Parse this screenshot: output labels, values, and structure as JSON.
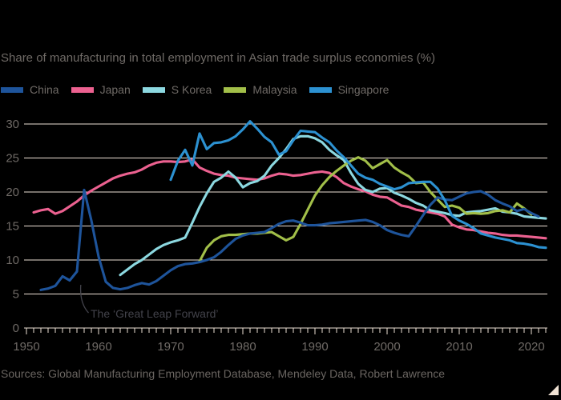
{
  "title": "Share of manufacturing in total employment in Asian trade surplus economies (%)",
  "source": "Sources: Global Manufacturing Employment Database, Mendeley Data, Robert Lawrence",
  "annotation": {
    "text": "The ‘Great Leap Forward’",
    "target_series": "China",
    "target_year": 1958
  },
  "colors": {
    "background": "#000000",
    "gridline": "#ece0d4",
    "axis_text": "#6f6a66",
    "annotation_text": "#43434b"
  },
  "chart_data": {
    "type": "line",
    "title": "Share of manufacturing in total employment in Asian trade surplus economies (%)",
    "xlabel": "",
    "ylabel": "",
    "x_range": [
      1950,
      2022.5
    ],
    "ylim": [
      0,
      30
    ],
    "x_ticks": [
      1950,
      1960,
      1970,
      1980,
      1990,
      2000,
      2010,
      2020
    ],
    "y_ticks": [
      0,
      5,
      10,
      15,
      20,
      25,
      30
    ],
    "grid": "horizontal",
    "legend_position": "top-left",
    "series": [
      {
        "id": "japan",
        "name": "Japan",
        "color": "#ec6190",
        "points": [
          [
            1951,
            17.0
          ],
          [
            1952,
            17.3
          ],
          [
            1953,
            17.5
          ],
          [
            1954,
            16.8
          ],
          [
            1955,
            17.2
          ],
          [
            1956,
            17.9
          ],
          [
            1957,
            18.6
          ],
          [
            1958,
            19.5
          ],
          [
            1959,
            20.2
          ],
          [
            1960,
            20.8
          ],
          [
            1961,
            21.4
          ],
          [
            1962,
            22.0
          ],
          [
            1963,
            22.4
          ],
          [
            1964,
            22.7
          ],
          [
            1965,
            22.9
          ],
          [
            1966,
            23.3
          ],
          [
            1967,
            23.9
          ],
          [
            1968,
            24.3
          ],
          [
            1969,
            24.5
          ],
          [
            1970,
            24.5
          ],
          [
            1971,
            24.4
          ],
          [
            1972,
            24.5
          ],
          [
            1973,
            24.8
          ],
          [
            1974,
            23.6
          ],
          [
            1975,
            23.1
          ],
          [
            1976,
            22.7
          ],
          [
            1977,
            22.5
          ],
          [
            1978,
            22.4
          ],
          [
            1979,
            22.1
          ],
          [
            1980,
            22.0
          ],
          [
            1981,
            21.9
          ],
          [
            1982,
            21.8
          ],
          [
            1983,
            22.0
          ],
          [
            1984,
            22.4
          ],
          [
            1985,
            22.7
          ],
          [
            1986,
            22.6
          ],
          [
            1987,
            22.4
          ],
          [
            1988,
            22.5
          ],
          [
            1989,
            22.7
          ],
          [
            1990,
            22.9
          ],
          [
            1991,
            23.0
          ],
          [
            1992,
            22.8
          ],
          [
            1993,
            22.2
          ],
          [
            1994,
            21.3
          ],
          [
            1995,
            20.8
          ],
          [
            1996,
            20.4
          ],
          [
            1997,
            20.1
          ],
          [
            1998,
            19.6
          ],
          [
            1999,
            19.3
          ],
          [
            2000,
            19.2
          ],
          [
            2001,
            18.6
          ],
          [
            2002,
            18.0
          ],
          [
            2003,
            17.8
          ],
          [
            2004,
            17.4
          ],
          [
            2005,
            17.2
          ],
          [
            2006,
            17.0
          ],
          [
            2007,
            16.8
          ],
          [
            2008,
            16.4
          ],
          [
            2009,
            15.2
          ],
          [
            2010,
            14.8
          ],
          [
            2011,
            14.5
          ],
          [
            2012,
            14.4
          ],
          [
            2013,
            14.2
          ],
          [
            2014,
            14.0
          ],
          [
            2015,
            13.9
          ],
          [
            2016,
            13.7
          ],
          [
            2017,
            13.6
          ],
          [
            2018,
            13.6
          ],
          [
            2019,
            13.5
          ],
          [
            2020,
            13.4
          ],
          [
            2021,
            13.3
          ],
          [
            2022,
            13.2
          ]
        ]
      },
      {
        "id": "skorea",
        "name": "S Korea",
        "color": "#8cd8e0",
        "points": [
          [
            1963,
            7.8
          ],
          [
            1964,
            8.6
          ],
          [
            1965,
            9.4
          ],
          [
            1966,
            10.0
          ],
          [
            1967,
            10.8
          ],
          [
            1968,
            11.6
          ],
          [
            1969,
            12.2
          ],
          [
            1970,
            12.6
          ],
          [
            1971,
            12.9
          ],
          [
            1972,
            13.3
          ],
          [
            1973,
            15.5
          ],
          [
            1974,
            17.8
          ],
          [
            1975,
            19.8
          ],
          [
            1976,
            21.5
          ],
          [
            1977,
            22.1
          ],
          [
            1978,
            23.0
          ],
          [
            1979,
            22.1
          ],
          [
            1980,
            20.7
          ],
          [
            1981,
            21.3
          ],
          [
            1982,
            21.6
          ],
          [
            1983,
            22.4
          ],
          [
            1984,
            23.9
          ],
          [
            1985,
            25.0
          ],
          [
            1986,
            26.3
          ],
          [
            1987,
            27.8
          ],
          [
            1988,
            28.2
          ],
          [
            1989,
            28.2
          ],
          [
            1990,
            27.9
          ],
          [
            1991,
            27.3
          ],
          [
            1992,
            26.2
          ],
          [
            1993,
            25.4
          ],
          [
            1994,
            24.7
          ],
          [
            1995,
            22.8
          ],
          [
            1996,
            21.2
          ],
          [
            1997,
            20.3
          ],
          [
            1998,
            20.0
          ],
          [
            1999,
            20.5
          ],
          [
            2000,
            20.6
          ],
          [
            2001,
            19.9
          ],
          [
            2002,
            19.5
          ],
          [
            2003,
            19.0
          ],
          [
            2004,
            18.4
          ],
          [
            2005,
            18.0
          ],
          [
            2006,
            17.3
          ],
          [
            2007,
            17.1
          ],
          [
            2008,
            16.9
          ],
          [
            2009,
            16.6
          ],
          [
            2010,
            16.5
          ],
          [
            2011,
            17.0
          ],
          [
            2012,
            17.1
          ],
          [
            2013,
            17.2
          ],
          [
            2014,
            17.4
          ],
          [
            2015,
            17.6
          ],
          [
            2016,
            17.1
          ],
          [
            2017,
            17.0
          ],
          [
            2018,
            16.8
          ],
          [
            2019,
            16.4
          ],
          [
            2020,
            16.3
          ],
          [
            2021,
            16.2
          ],
          [
            2022,
            16.1
          ]
        ]
      },
      {
        "id": "malaysia",
        "name": "Malaysia",
        "color": "#a2bf49",
        "points": [
          [
            1974,
            9.8
          ],
          [
            1975,
            11.8
          ],
          [
            1976,
            12.9
          ],
          [
            1977,
            13.5
          ],
          [
            1978,
            13.7
          ],
          [
            1979,
            13.7
          ],
          [
            1980,
            13.8
          ],
          [
            1981,
            13.9
          ],
          [
            1982,
            13.9
          ],
          [
            1983,
            14.0
          ],
          [
            1984,
            14.1
          ],
          [
            1985,
            13.5
          ],
          [
            1986,
            12.9
          ],
          [
            1987,
            13.4
          ],
          [
            1988,
            15.3
          ],
          [
            1989,
            17.4
          ],
          [
            1990,
            19.5
          ],
          [
            1991,
            21.0
          ],
          [
            1992,
            22.2
          ],
          [
            1993,
            23.1
          ],
          [
            1994,
            23.9
          ],
          [
            1995,
            24.6
          ],
          [
            1996,
            25.1
          ],
          [
            1997,
            24.6
          ],
          [
            1998,
            23.5
          ],
          [
            1999,
            24.1
          ],
          [
            2000,
            24.7
          ],
          [
            2001,
            23.6
          ],
          [
            2002,
            22.9
          ],
          [
            2003,
            22.3
          ],
          [
            2004,
            21.3
          ],
          [
            2005,
            21.4
          ],
          [
            2006,
            20.0
          ],
          [
            2007,
            18.9
          ],
          [
            2008,
            17.8
          ],
          [
            2009,
            18.0
          ],
          [
            2010,
            17.7
          ],
          [
            2011,
            16.8
          ],
          [
            2012,
            16.9
          ],
          [
            2013,
            16.8
          ],
          [
            2014,
            16.9
          ],
          [
            2015,
            17.2
          ],
          [
            2016,
            17.3
          ],
          [
            2017,
            17.0
          ],
          [
            2018,
            18.3
          ],
          [
            2019,
            17.6
          ],
          [
            2020,
            16.7
          ]
        ]
      },
      {
        "id": "china",
        "name": "China",
        "color": "#1e549b",
        "points": [
          [
            1952,
            5.6
          ],
          [
            1953,
            5.8
          ],
          [
            1954,
            6.2
          ],
          [
            1955,
            7.6
          ],
          [
            1956,
            7.0
          ],
          [
            1957,
            8.3
          ],
          [
            1958,
            20.3
          ],
          [
            1959,
            15.8
          ],
          [
            1960,
            10.5
          ],
          [
            1961,
            6.8
          ],
          [
            1962,
            5.9
          ],
          [
            1963,
            5.7
          ],
          [
            1964,
            5.9
          ],
          [
            1965,
            6.3
          ],
          [
            1966,
            6.6
          ],
          [
            1967,
            6.4
          ],
          [
            1968,
            6.9
          ],
          [
            1969,
            7.7
          ],
          [
            1970,
            8.5
          ],
          [
            1971,
            9.1
          ],
          [
            1972,
            9.4
          ],
          [
            1973,
            9.5
          ],
          [
            1974,
            9.7
          ],
          [
            1975,
            10.0
          ],
          [
            1976,
            10.4
          ],
          [
            1977,
            11.2
          ],
          [
            1978,
            12.2
          ],
          [
            1979,
            13.1
          ],
          [
            1980,
            13.6
          ],
          [
            1981,
            13.9
          ],
          [
            1982,
            14.0
          ],
          [
            1983,
            14.1
          ],
          [
            1984,
            14.7
          ],
          [
            1985,
            15.3
          ],
          [
            1986,
            15.7
          ],
          [
            1987,
            15.8
          ],
          [
            1988,
            15.5
          ],
          [
            1989,
            15.1
          ],
          [
            1990,
            15.1
          ],
          [
            1991,
            15.2
          ],
          [
            1992,
            15.4
          ],
          [
            1993,
            15.5
          ],
          [
            1994,
            15.6
          ],
          [
            1995,
            15.7
          ],
          [
            1996,
            15.8
          ],
          [
            1997,
            15.9
          ],
          [
            1998,
            15.6
          ],
          [
            1999,
            15.1
          ],
          [
            2000,
            14.4
          ],
          [
            2001,
            14.0
          ],
          [
            2002,
            13.7
          ],
          [
            2003,
            13.5
          ],
          [
            2004,
            15.0
          ],
          [
            2005,
            16.6
          ],
          [
            2006,
            18.1
          ],
          [
            2007,
            19.2
          ],
          [
            2008,
            18.9
          ],
          [
            2009,
            18.8
          ],
          [
            2010,
            19.3
          ],
          [
            2011,
            19.8
          ],
          [
            2012,
            20.0
          ],
          [
            2013,
            20.1
          ],
          [
            2014,
            19.6
          ],
          [
            2015,
            18.8
          ],
          [
            2016,
            18.3
          ],
          [
            2017,
            17.9
          ],
          [
            2018,
            17.2
          ],
          [
            2019,
            17.5
          ],
          [
            2020,
            16.9
          ],
          [
            2021,
            16.4
          ]
        ]
      },
      {
        "id": "singapore",
        "name": "Singapore",
        "color": "#2c91d1",
        "points": [
          [
            1970,
            21.8
          ],
          [
            1971,
            24.6
          ],
          [
            1972,
            26.2
          ],
          [
            1973,
            23.9
          ],
          [
            1974,
            28.6
          ],
          [
            1975,
            26.3
          ],
          [
            1976,
            27.2
          ],
          [
            1977,
            27.3
          ],
          [
            1978,
            27.6
          ],
          [
            1979,
            28.2
          ],
          [
            1980,
            29.2
          ],
          [
            1981,
            30.4
          ],
          [
            1982,
            29.3
          ],
          [
            1983,
            28.1
          ],
          [
            1984,
            27.3
          ],
          [
            1985,
            25.5
          ],
          [
            1986,
            26.0
          ],
          [
            1987,
            27.6
          ],
          [
            1988,
            29.0
          ],
          [
            1989,
            28.9
          ],
          [
            1990,
            28.8
          ],
          [
            1991,
            28.0
          ],
          [
            1992,
            27.3
          ],
          [
            1993,
            26.1
          ],
          [
            1994,
            25.1
          ],
          [
            1995,
            23.9
          ],
          [
            1996,
            22.7
          ],
          [
            1997,
            22.1
          ],
          [
            1998,
            21.8
          ],
          [
            1999,
            21.2
          ],
          [
            2000,
            20.8
          ],
          [
            2001,
            20.4
          ],
          [
            2002,
            20.7
          ],
          [
            2003,
            21.3
          ],
          [
            2004,
            21.4
          ],
          [
            2005,
            21.5
          ],
          [
            2006,
            21.5
          ],
          [
            2007,
            20.5
          ],
          [
            2008,
            18.8
          ],
          [
            2009,
            16.5
          ],
          [
            2010,
            15.8
          ],
          [
            2011,
            15.3
          ],
          [
            2012,
            14.7
          ],
          [
            2013,
            13.9
          ],
          [
            2014,
            13.6
          ],
          [
            2015,
            13.3
          ],
          [
            2016,
            13.1
          ],
          [
            2017,
            12.9
          ],
          [
            2018,
            12.5
          ],
          [
            2019,
            12.4
          ],
          [
            2020,
            12.2
          ],
          [
            2021,
            11.9
          ],
          [
            2022,
            11.8
          ]
        ]
      }
    ],
    "legend_order": [
      "China",
      "Japan",
      "S Korea",
      "Malaysia",
      "Singapore"
    ]
  }
}
